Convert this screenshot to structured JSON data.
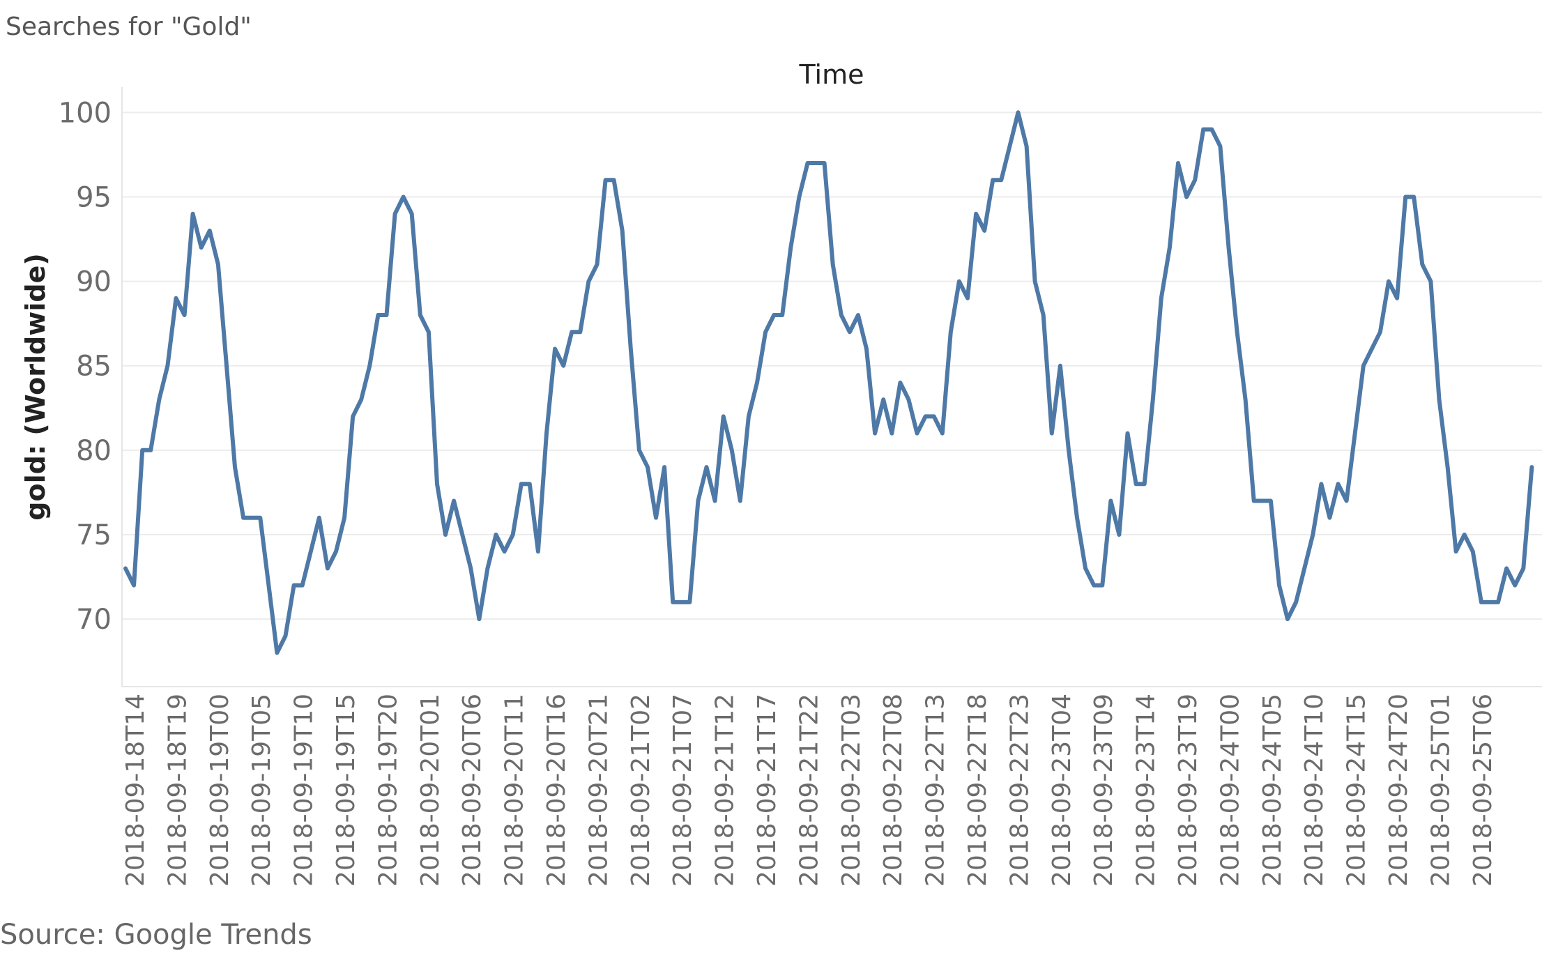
{
  "title": "Searches for \"Gold\"",
  "source": "Source: Google Trends",
  "chart_data": {
    "type": "line",
    "xlabel": "Time",
    "ylabel": "gold: (Worldwide)",
    "ylim": [
      66,
      101.5
    ],
    "yticks": [
      70,
      75,
      80,
      85,
      90,
      95,
      100
    ],
    "grid": true,
    "line_color": "#4e79a7",
    "start_time": "2018-09-18T14",
    "xtick_labels": [
      "2018-09-18T14",
      "2018-09-18T19",
      "2018-09-19T00",
      "2018-09-19T05",
      "2018-09-19T10",
      "2018-09-19T15",
      "2018-09-19T20",
      "2018-09-20T01",
      "2018-09-20T06",
      "2018-09-20T11",
      "2018-09-20T16",
      "2018-09-20T21",
      "2018-09-21T02",
      "2018-09-21T07",
      "2018-09-21T12",
      "2018-09-21T17",
      "2018-09-21T22",
      "2018-09-22T03",
      "2018-09-22T08",
      "2018-09-22T13",
      "2018-09-22T18",
      "2018-09-22T23",
      "2018-09-23T04",
      "2018-09-23T09",
      "2018-09-23T14",
      "2018-09-23T19",
      "2018-09-24T00",
      "2018-09-24T05",
      "2018-09-24T10",
      "2018-09-24T15",
      "2018-09-24T20",
      "2018-09-25T01",
      "2018-09-25T06"
    ],
    "series": [
      {
        "values": [
          73,
          72,
          80,
          80,
          83,
          85,
          89,
          88,
          94,
          92,
          93,
          91,
          85,
          79,
          76,
          76,
          76,
          72,
          68,
          69,
          72,
          72,
          74,
          76,
          73,
          74,
          76,
          82,
          83,
          85,
          88,
          88,
          94,
          95,
          94,
          88,
          87,
          78,
          75,
          77,
          75,
          73,
          70,
          73,
          75,
          74,
          75,
          78,
          78,
          74,
          81,
          86,
          85,
          87,
          87,
          90,
          91,
          96,
          96,
          93,
          86,
          80,
          79,
          76,
          79,
          71,
          71,
          71,
          77,
          79,
          77,
          82,
          80,
          77,
          82,
          84,
          87,
          88,
          88,
          92,
          95,
          97,
          97,
          97,
          91,
          88,
          87,
          88,
          86,
          81,
          83,
          81,
          84,
          83,
          81,
          82,
          82,
          81,
          87,
          90,
          89,
          94,
          93,
          96,
          96,
          98,
          100,
          98,
          90,
          88,
          81,
          85,
          80,
          76,
          73,
          72,
          72,
          77,
          75,
          81,
          78,
          78,
          83,
          89,
          92,
          97,
          95,
          96,
          99,
          99,
          98,
          92,
          87,
          83,
          77,
          77,
          77,
          72,
          70,
          71,
          73,
          75,
          78,
          76,
          78,
          77,
          81,
          85,
          86,
          87,
          90,
          89,
          95,
          95,
          91,
          90,
          83,
          79,
          74,
          75,
          74,
          71,
          71,
          71,
          73,
          72,
          73,
          79
        ]
      }
    ]
  }
}
